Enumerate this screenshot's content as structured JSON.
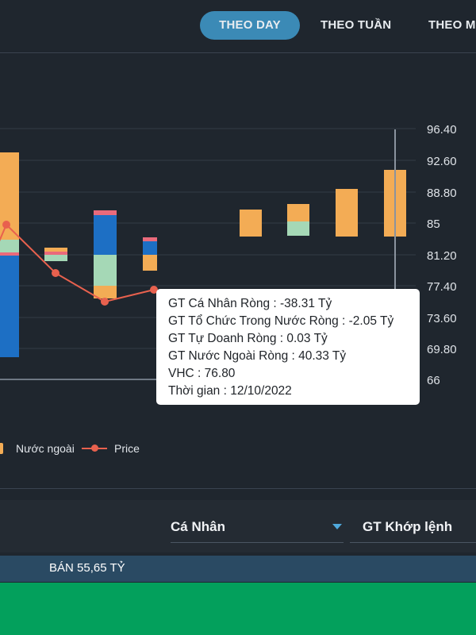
{
  "tabs": [
    {
      "label": "THEO DAY",
      "active": true
    },
    {
      "label": "THEO TUẦN",
      "active": false
    },
    {
      "label": "THEO MO",
      "active": false
    }
  ],
  "chart_data": {
    "type": "bar",
    "stacked": true,
    "y_axis_ticks": [
      "96.40",
      "92.60",
      "88.80",
      "85",
      "81.20",
      "77.40",
      "73.60",
      "69.80",
      "66"
    ],
    "ylim": [
      66,
      96.4
    ],
    "price_series": {
      "name": "Price",
      "x_index": [
        0,
        1,
        2,
        3,
        6
      ],
      "values": [
        85,
        79,
        75.5,
        77,
        67
      ]
    },
    "legend": [
      {
        "name": "Nước ngoài",
        "color": "#f3ac55"
      },
      {
        "name": "Price",
        "color": "#e8614e"
      }
    ],
    "colors": {
      "ca_nhan": "#1d6fc4",
      "to_chuc": "#a5d8b6",
      "tu_doanh": "#ea6a7b",
      "nuoc_ngoai": "#f3ac55",
      "price": "#e8614e"
    }
  },
  "tooltip": {
    "lines": [
      "GT Cá Nhân Ròng  : -38.31 Tỷ",
      "GT Tổ Chức Trong Nước Ròng : -2.05 Tỷ",
      "GT Tự Doanh Ròng : 0.03 Tỷ",
      "GT Nước Ngoài Ròng : 40.33 Tỷ",
      "VHC : 76.80",
      "Thời gian : 12/10/2022"
    ]
  },
  "filters": {
    "investor_type": "Cá Nhân",
    "value_type": "GT Khớp lệnh"
  },
  "summary": {
    "sell_text": "BÁN 55,65 TỶ"
  }
}
